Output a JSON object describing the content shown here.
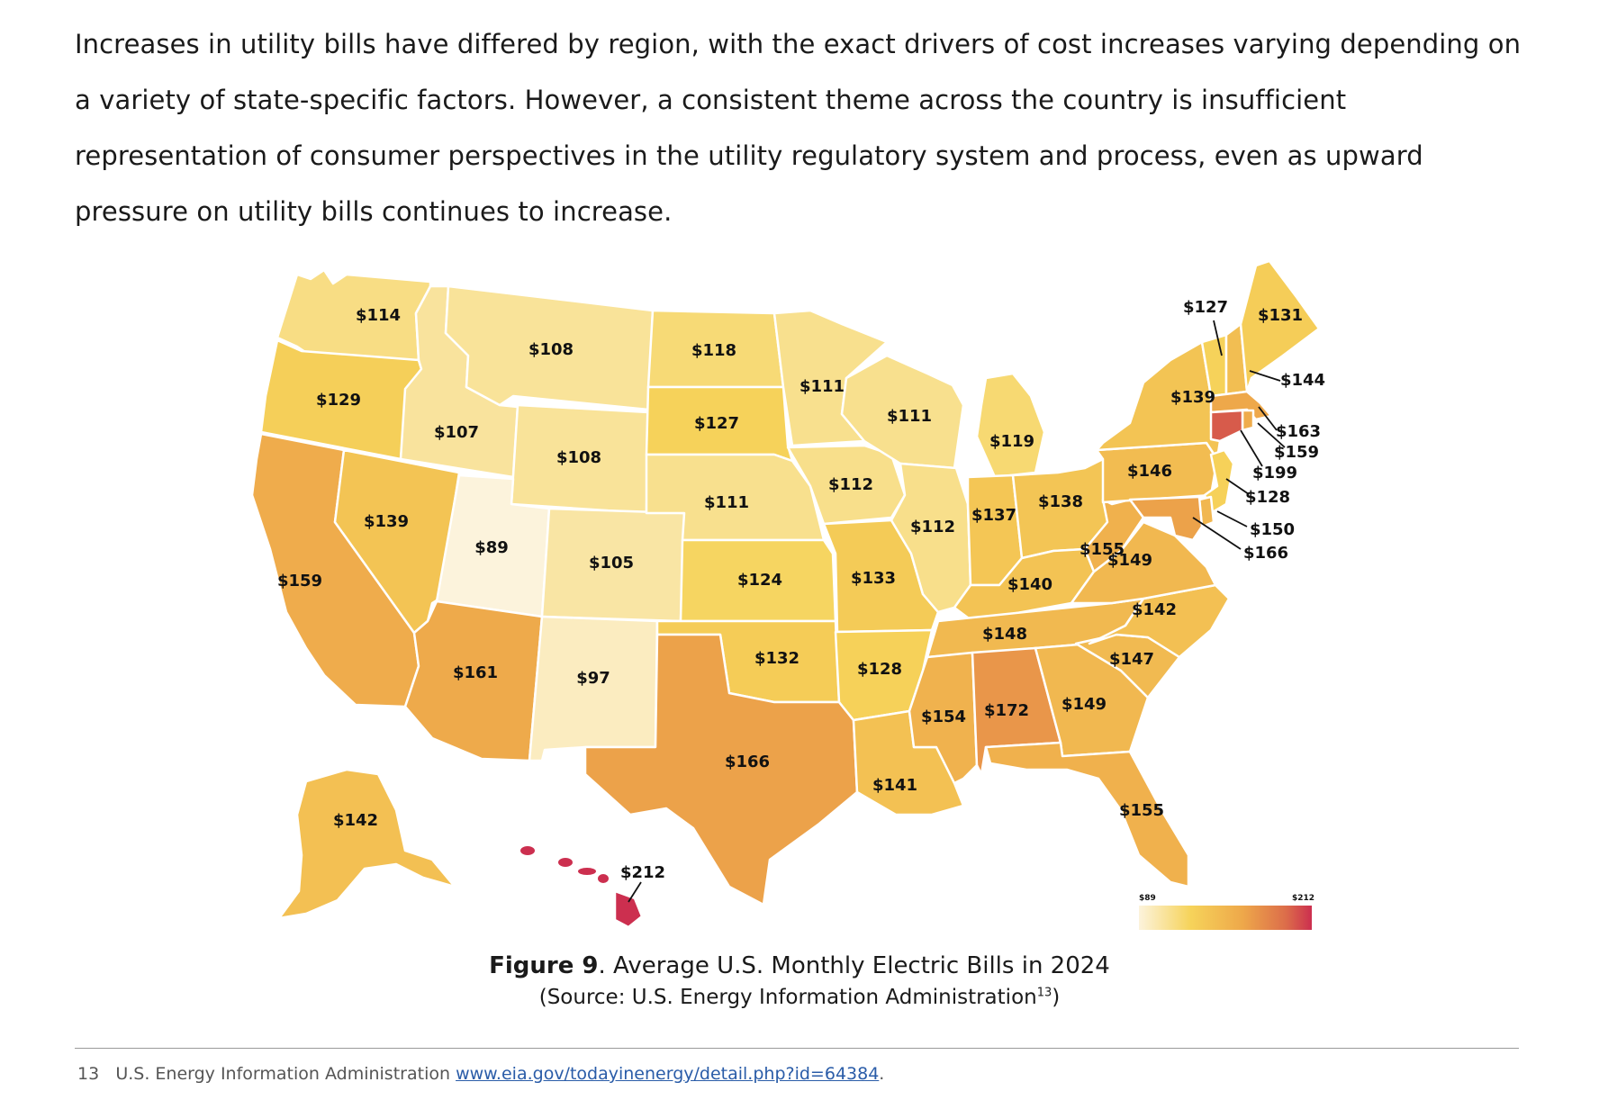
{
  "intro_text": "Increases in utility bills have differed by region, with the exact drivers of cost increases varying depending on a variety of state-specific factors. However, a consistent theme across the country is insufficient representation of consumer perspectives in the utility regulatory system and process, even as upward pressure on utility bills continues to increase.",
  "legend": {
    "min_label": "$89",
    "max_label": "$212",
    "min": 89,
    "max": 212
  },
  "states": [
    {
      "abbr": "WA",
      "value": 114,
      "label": "$114"
    },
    {
      "abbr": "OR",
      "value": 129,
      "label": "$129"
    },
    {
      "abbr": "CA",
      "value": 159,
      "label": "$159"
    },
    {
      "abbr": "NV",
      "value": 139,
      "label": "$139"
    },
    {
      "abbr": "ID",
      "value": 107,
      "label": "$107"
    },
    {
      "abbr": "MT",
      "value": 108,
      "label": "$108"
    },
    {
      "abbr": "WY",
      "value": 108,
      "label": "$108"
    },
    {
      "abbr": "UT",
      "value": 89,
      "label": "$89"
    },
    {
      "abbr": "CO",
      "value": 105,
      "label": "$105"
    },
    {
      "abbr": "AZ",
      "value": 161,
      "label": "$161"
    },
    {
      "abbr": "NM",
      "value": 97,
      "label": "$97"
    },
    {
      "abbr": "ND",
      "value": 118,
      "label": "$118"
    },
    {
      "abbr": "SD",
      "value": 127,
      "label": "$127"
    },
    {
      "abbr": "NE",
      "value": 111,
      "label": "$111"
    },
    {
      "abbr": "KS",
      "value": 124,
      "label": "$124"
    },
    {
      "abbr": "OK",
      "value": 132,
      "label": "$132"
    },
    {
      "abbr": "TX",
      "value": 166,
      "label": "$166"
    },
    {
      "abbr": "MN",
      "value": 111,
      "label": "$111"
    },
    {
      "abbr": "IA",
      "value": 112,
      "label": "$112"
    },
    {
      "abbr": "MO",
      "value": 133,
      "label": "$133"
    },
    {
      "abbr": "AR",
      "value": 128,
      "label": "$128"
    },
    {
      "abbr": "LA",
      "value": 141,
      "label": "$141"
    },
    {
      "abbr": "WI",
      "value": 111,
      "label": "$111"
    },
    {
      "abbr": "IL",
      "value": 112,
      "label": "$112"
    },
    {
      "abbr": "MI",
      "value": 119,
      "label": "$119"
    },
    {
      "abbr": "IN",
      "value": 137,
      "label": "$137"
    },
    {
      "abbr": "OH",
      "value": 138,
      "label": "$138"
    },
    {
      "abbr": "KY",
      "value": 140,
      "label": "$140"
    },
    {
      "abbr": "TN",
      "value": 148,
      "label": "$148"
    },
    {
      "abbr": "MS",
      "value": 154,
      "label": "$154"
    },
    {
      "abbr": "AL",
      "value": 172,
      "label": "$172"
    },
    {
      "abbr": "GA",
      "value": 149,
      "label": "$149"
    },
    {
      "abbr": "FL",
      "value": 155,
      "label": "$155"
    },
    {
      "abbr": "SC",
      "value": 147,
      "label": "$147"
    },
    {
      "abbr": "NC",
      "value": 142,
      "label": "$142"
    },
    {
      "abbr": "VA",
      "value": 149,
      "label": "$149"
    },
    {
      "abbr": "WV",
      "value": 155,
      "label": "$155"
    },
    {
      "abbr": "PA",
      "value": 146,
      "label": "$146"
    },
    {
      "abbr": "NY",
      "value": 139,
      "label": "$139"
    },
    {
      "abbr": "VT",
      "value": 127,
      "label": "$127"
    },
    {
      "abbr": "NH",
      "value": 144,
      "label": "$144"
    },
    {
      "abbr": "ME",
      "value": 131,
      "label": "$131"
    },
    {
      "abbr": "MA",
      "value": 163,
      "label": "$163"
    },
    {
      "abbr": "RI",
      "value": 159,
      "label": "$159"
    },
    {
      "abbr": "CT",
      "value": 199,
      "label": "$199"
    },
    {
      "abbr": "NJ",
      "value": 128,
      "label": "$128"
    },
    {
      "abbr": "DE",
      "value": 150,
      "label": "$150"
    },
    {
      "abbr": "MD",
      "value": 166,
      "label": "$166"
    },
    {
      "abbr": "AK",
      "value": 142,
      "label": "$142"
    },
    {
      "abbr": "HI",
      "value": 212,
      "label": "$212"
    }
  ],
  "caption": {
    "figure": "Figure 9",
    "title": ". Average U.S. Monthly Electric Bills in 2024",
    "source_prefix": "(Source: U.S. Energy Information Administration",
    "source_ref": "13",
    "source_suffix": ")"
  },
  "footnote": {
    "number": "13",
    "text": "U.S. Energy Information Administration",
    "link": "www.eia.gov/todayinenergy/detail.php?id=64384",
    "trail": "."
  }
}
